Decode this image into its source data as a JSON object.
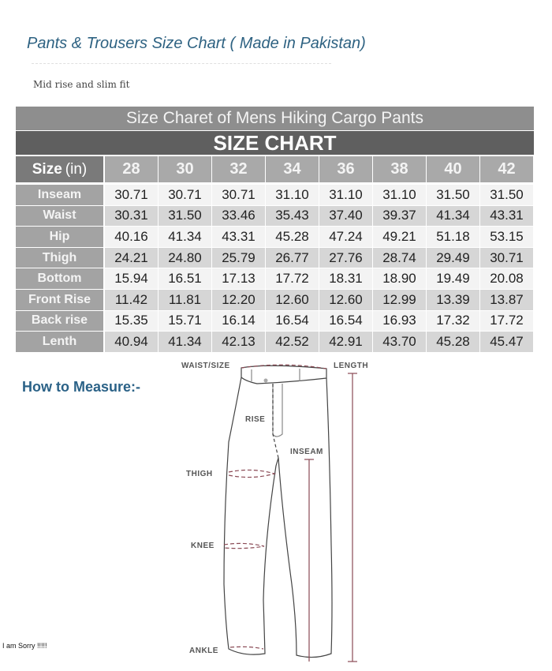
{
  "header": {
    "title": "Pants & Trousers Size Chart ( Made in Pakistan)",
    "subtitle": "Mid rise and slim fit"
  },
  "size_chart": {
    "caption": "Size Charet of  Mens Hiking Cargo Pants",
    "heading": "SIZE CHART",
    "size_label": "Size",
    "size_unit": "(in)",
    "sizes": [
      "28",
      "30",
      "32",
      "34",
      "36",
      "38",
      "40",
      "42"
    ],
    "rows": [
      {
        "label": "Inseam",
        "values": [
          "30.71",
          "30.71",
          "30.71",
          "31.10",
          "31.10",
          "31.10",
          "31.50",
          "31.50"
        ]
      },
      {
        "label": "Waist",
        "values": [
          "30.31",
          "31.50",
          "33.46",
          "35.43",
          "37.40",
          "39.37",
          "41.34",
          "43.31"
        ]
      },
      {
        "label": "Hip",
        "values": [
          "40.16",
          "41.34",
          "43.31",
          "45.28",
          "47.24",
          "49.21",
          "51.18",
          "53.15"
        ]
      },
      {
        "label": "Thigh",
        "values": [
          "24.21",
          "24.80",
          "25.79",
          "26.77",
          "27.76",
          "28.74",
          "29.49",
          "30.71"
        ]
      },
      {
        "label": "Bottom",
        "values": [
          "15.94",
          "16.51",
          "17.13",
          "17.72",
          "18.31",
          "18.90",
          "19.49",
          "20.08"
        ]
      },
      {
        "label": "Front Rise",
        "values": [
          "11.42",
          "11.81",
          "12.20",
          "12.60",
          "12.60",
          "12.99",
          "13.39",
          "13.87"
        ]
      },
      {
        "label": "Back rise",
        "values": [
          "15.35",
          "15.71",
          "16.14",
          "16.54",
          "16.54",
          "16.93",
          "17.32",
          "17.72"
        ]
      },
      {
        "label": "Lenth",
        "values": [
          "40.94",
          "41.34",
          "42.13",
          "42.52",
          "42.91",
          "43.70",
          "45.28",
          "45.47"
        ]
      }
    ]
  },
  "how_to_measure": {
    "title": "How to Measure:-",
    "labels": {
      "waist": "WAIST/SIZE",
      "length": "LENGTH",
      "rise": "RISE",
      "inseam": "INSEAM",
      "thigh": "THIGH",
      "knee": "KNEE",
      "ankle": "ANKLE"
    },
    "measure_line_color": "#8a4a55"
  },
  "footer_note": "I am Sorry !!!!!"
}
